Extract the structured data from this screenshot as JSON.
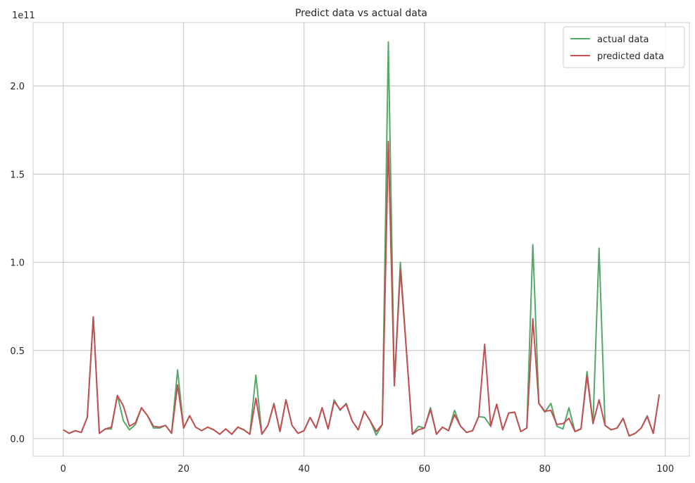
{
  "chart_data": {
    "type": "line",
    "title": "Predict data vs actual data",
    "xlabel": "",
    "ylabel": "",
    "y_offset_label": "1e11",
    "xlim": [
      -5,
      104
    ],
    "ylim": [
      -0.1,
      2.36
    ],
    "x_ticks": [
      0,
      20,
      40,
      60,
      80,
      100
    ],
    "y_ticks": [
      0.0,
      0.5,
      1.0,
      1.5,
      2.0
    ],
    "x_tick_labels": [
      "0",
      "20",
      "40",
      "60",
      "80",
      "100"
    ],
    "y_tick_labels": [
      "0.0",
      "0.5",
      "1.0",
      "1.5",
      "2.0"
    ],
    "grid": true,
    "legend_position": "top-right",
    "series": [
      {
        "name": "actual data",
        "color": "#55a868",
        "values": [
          0.05,
          0.03,
          0.045,
          0.035,
          0.12,
          0.69,
          0.03,
          0.055,
          0.055,
          0.245,
          0.1,
          0.05,
          0.08,
          0.175,
          0.13,
          0.06,
          0.06,
          0.075,
          0.03,
          0.39,
          0.06,
          0.13,
          0.065,
          0.045,
          0.065,
          0.05,
          0.025,
          0.055,
          0.025,
          0.065,
          0.05,
          0.025,
          0.36,
          0.025,
          0.075,
          0.2,
          0.04,
          0.22,
          0.075,
          0.03,
          0.045,
          0.12,
          0.06,
          0.175,
          0.055,
          0.22,
          0.16,
          0.2,
          0.1,
          0.05,
          0.155,
          0.1,
          0.02,
          0.08,
          2.25,
          0.3,
          1.0,
          0.5,
          0.025,
          0.07,
          0.06,
          0.175,
          0.025,
          0.065,
          0.045,
          0.16,
          0.07,
          0.035,
          0.045,
          0.125,
          0.12,
          0.07,
          0.195,
          0.05,
          0.145,
          0.15,
          0.04,
          0.06,
          1.1,
          0.2,
          0.15,
          0.2,
          0.07,
          0.055,
          0.175,
          0.04,
          0.055,
          0.38,
          0.085,
          1.08,
          0.075,
          0.05,
          0.06,
          0.115,
          0.015,
          0.03,
          0.06,
          0.13,
          0.03,
          0.25
        ]
      },
      {
        "name": "predicted data",
        "color": "#c44e52",
        "values": [
          0.05,
          0.03,
          0.045,
          0.035,
          0.12,
          0.69,
          0.03,
          0.055,
          0.065,
          0.245,
          0.185,
          0.07,
          0.09,
          0.175,
          0.13,
          0.07,
          0.065,
          0.075,
          0.03,
          0.305,
          0.06,
          0.13,
          0.065,
          0.045,
          0.065,
          0.05,
          0.025,
          0.055,
          0.025,
          0.065,
          0.05,
          0.025,
          0.23,
          0.025,
          0.075,
          0.195,
          0.04,
          0.22,
          0.075,
          0.03,
          0.045,
          0.12,
          0.06,
          0.175,
          0.055,
          0.21,
          0.165,
          0.195,
          0.1,
          0.05,
          0.155,
          0.1,
          0.04,
          0.08,
          1.685,
          0.3,
          0.96,
          0.5,
          0.025,
          0.05,
          0.06,
          0.165,
          0.025,
          0.065,
          0.045,
          0.135,
          0.07,
          0.035,
          0.045,
          0.125,
          0.535,
          0.07,
          0.195,
          0.05,
          0.145,
          0.15,
          0.04,
          0.06,
          0.68,
          0.2,
          0.155,
          0.16,
          0.08,
          0.085,
          0.115,
          0.04,
          0.055,
          0.355,
          0.085,
          0.22,
          0.075,
          0.05,
          0.06,
          0.115,
          0.015,
          0.03,
          0.06,
          0.125,
          0.03,
          0.25
        ]
      }
    ]
  }
}
